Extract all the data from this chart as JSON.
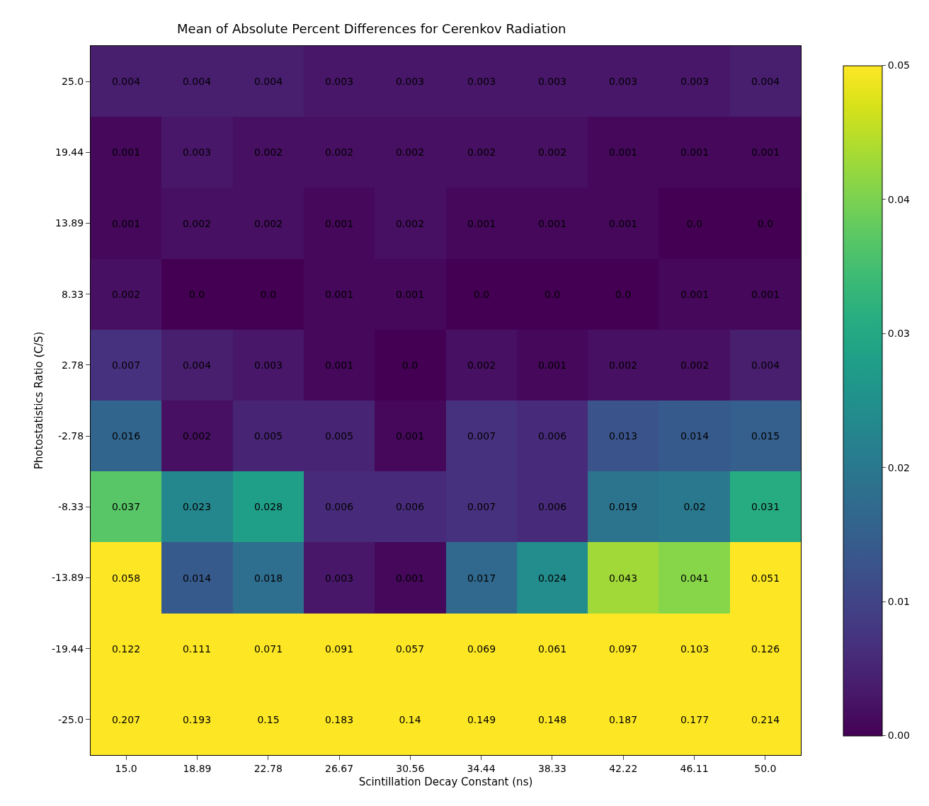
{
  "chart_data": {
    "type": "heatmap",
    "title": "Mean of Absolute Percent Differences for Cerenkov Radiation",
    "xlabel": "Scintillation Decay Constant (ns)",
    "ylabel": "Photostatistics Ratio (C/S)",
    "categories": [
      "15.0",
      "18.89",
      "22.78",
      "26.67",
      "30.56",
      "34.44",
      "38.33",
      "42.22",
      "46.11",
      "50.0"
    ],
    "y_categories": [
      "25.0",
      "19.44",
      "13.89",
      "8.33",
      "2.78",
      "-2.78",
      "-8.33",
      "-13.89",
      "-19.44",
      "-25.0"
    ],
    "cells": [
      [
        0.004,
        0.004,
        0.004,
        0.003,
        0.003,
        0.003,
        0.003,
        0.003,
        0.003,
        0.004
      ],
      [
        0.001,
        0.003,
        0.002,
        0.002,
        0.002,
        0.002,
        0.002,
        0.001,
        0.001,
        0.001
      ],
      [
        0.001,
        0.002,
        0.002,
        0.001,
        0.002,
        0.001,
        0.001,
        0.001,
        0.0,
        0.0
      ],
      [
        0.002,
        0.0,
        0.0,
        0.001,
        0.001,
        0.0,
        0.0,
        0.0,
        0.001,
        0.001
      ],
      [
        0.007,
        0.004,
        0.003,
        0.001,
        0.0,
        0.002,
        0.001,
        0.002,
        0.002,
        0.004
      ],
      [
        0.016,
        0.002,
        0.005,
        0.005,
        0.001,
        0.007,
        0.006,
        0.013,
        0.014,
        0.015
      ],
      [
        0.037,
        0.023,
        0.028,
        0.006,
        0.006,
        0.007,
        0.006,
        0.019,
        0.02,
        0.031
      ],
      [
        0.058,
        0.014,
        0.018,
        0.003,
        0.001,
        0.017,
        0.024,
        0.043,
        0.041,
        0.051
      ],
      [
        0.122,
        0.111,
        0.071,
        0.091,
        0.057,
        0.069,
        0.061,
        0.097,
        0.103,
        0.126
      ],
      [
        0.207,
        0.193,
        0.15,
        0.183,
        0.14,
        0.149,
        0.148,
        0.187,
        0.177,
        0.214
      ]
    ],
    "cell_labels": [
      [
        "0.004",
        "0.004",
        "0.004",
        "0.003",
        "0.003",
        "0.003",
        "0.003",
        "0.003",
        "0.003",
        "0.004"
      ],
      [
        "0.001",
        "0.003",
        "0.002",
        "0.002",
        "0.002",
        "0.002",
        "0.002",
        "0.001",
        "0.001",
        "0.001"
      ],
      [
        "0.001",
        "0.002",
        "0.002",
        "0.001",
        "0.002",
        "0.001",
        "0.001",
        "0.001",
        "0.0",
        "0.0"
      ],
      [
        "0.002",
        "0.0",
        "0.0",
        "0.001",
        "0.001",
        "0.0",
        "0.0",
        "0.0",
        "0.001",
        "0.001"
      ],
      [
        "0.007",
        "0.004",
        "0.003",
        "0.001",
        "0.0",
        "0.002",
        "0.001",
        "0.002",
        "0.002",
        "0.004"
      ],
      [
        "0.016",
        "0.002",
        "0.005",
        "0.005",
        "0.001",
        "0.007",
        "0.006",
        "0.013",
        "0.014",
        "0.015"
      ],
      [
        "0.037",
        "0.023",
        "0.028",
        "0.006",
        "0.006",
        "0.007",
        "0.006",
        "0.019",
        "0.02",
        "0.031"
      ],
      [
        "0.058",
        "0.014",
        "0.018",
        "0.003",
        "0.001",
        "0.017",
        "0.024",
        "0.043",
        "0.041",
        "0.051"
      ],
      [
        "0.122",
        "0.111",
        "0.071",
        "0.091",
        "0.057",
        "0.069",
        "0.061",
        "0.097",
        "0.103",
        "0.126"
      ],
      [
        "0.207",
        "0.193",
        "0.15",
        "0.183",
        "0.14",
        "0.149",
        "0.148",
        "0.187",
        "0.177",
        "0.214"
      ]
    ],
    "clim": [
      0,
      0.05
    ],
    "cticks": [
      {
        "value": 0,
        "label": "0.00"
      },
      {
        "value": 0.01,
        "label": "0.01"
      },
      {
        "value": 0.02,
        "label": "0.02"
      },
      {
        "value": 0.03,
        "label": "0.03"
      },
      {
        "value": 0.04,
        "label": "0.04"
      },
      {
        "value": 0.05,
        "label": "0.05"
      }
    ]
  }
}
